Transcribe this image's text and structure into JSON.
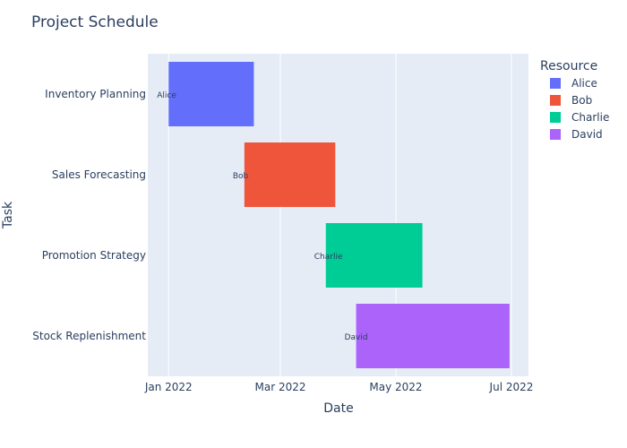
{
  "chart_data": {
    "type": "gantt",
    "title": "Project Schedule",
    "xlabel": "Date",
    "ylabel": "Task",
    "x_range": [
      "2021-12-21",
      "2022-07-10"
    ],
    "x_ticks": [
      {
        "date": "2022-01-01",
        "label": "Jan 2022"
      },
      {
        "date": "2022-03-01",
        "label": "Mar 2022"
      },
      {
        "date": "2022-05-01",
        "label": "May 2022"
      },
      {
        "date": "2022-07-01",
        "label": "Jul 2022"
      }
    ],
    "tasks": [
      {
        "task": "Inventory Planning",
        "start": "2022-01-01",
        "end": "2022-02-15",
        "resource": "Alice",
        "label": "Alice"
      },
      {
        "task": "Sales Forecasting",
        "start": "2022-02-10",
        "end": "2022-03-30",
        "resource": "Bob",
        "label": "Bob"
      },
      {
        "task": "Promotion Strategy",
        "start": "2022-03-25",
        "end": "2022-05-15",
        "resource": "Charlie",
        "label": "Charlie"
      },
      {
        "task": "Stock Replenishment",
        "start": "2022-04-10",
        "end": "2022-06-30",
        "resource": "David",
        "label": "David"
      }
    ],
    "legend": {
      "title": "Resource",
      "placement": "right",
      "items": [
        {
          "name": "Alice",
          "color": "#636efa"
        },
        {
          "name": "Bob",
          "color": "#ef553b"
        },
        {
          "name": "Charlie",
          "color": "#00cc96"
        },
        {
          "name": "David",
          "color": "#ab63fa"
        }
      ]
    },
    "grid": true,
    "colors": {
      "plot_bg": "#e5ecf6",
      "grid": "#ffffff",
      "text": "#2a3f5f"
    }
  }
}
